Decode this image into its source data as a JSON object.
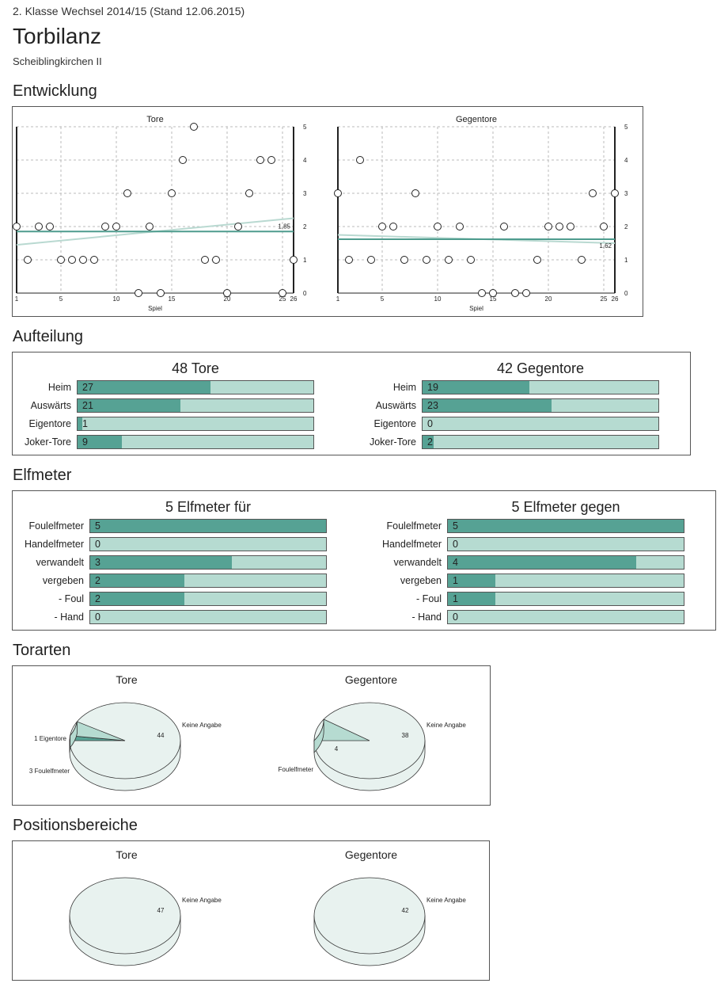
{
  "header": {
    "subtitle": "2. Klasse Wechsel 2014/15 (Stand 12.06.2015)",
    "title": "Torbilanz",
    "team": "Scheiblingkirchen II"
  },
  "sections": {
    "entwicklung": "Entwicklung",
    "aufteilung": "Aufteilung",
    "elfmeter": "Elfmeter",
    "torarten": "Torarten",
    "positionsbereiche": "Positionsbereiche"
  },
  "colors": {
    "dark_bar": "#56a294",
    "light_bar": "#b6dbd1",
    "mean_line": "#4e9c8e",
    "trend_line": "#b9d9d1",
    "pie_light": "#e8f2ef",
    "pie_dark": "#56a294",
    "pie_mid": "#b6dbd1"
  },
  "chart_data": [
    {
      "type": "scatter",
      "title": "Tore",
      "xlabel": "Spiel",
      "x_ticks": [
        1,
        5,
        10,
        15,
        20,
        25,
        26
      ],
      "y_ticks": [
        0,
        1,
        2,
        3,
        4,
        5
      ],
      "ylim": [
        0,
        5
      ],
      "xlim": [
        1,
        26
      ],
      "grid": true,
      "x": [
        1,
        2,
        3,
        4,
        5,
        6,
        7,
        8,
        9,
        10,
        11,
        12,
        13,
        14,
        15,
        16,
        17,
        18,
        19,
        20,
        21,
        22,
        23,
        24,
        25,
        26
      ],
      "y": [
        2,
        1,
        2,
        2,
        1,
        1,
        1,
        1,
        2,
        2,
        3,
        0,
        2,
        0,
        3,
        4,
        5,
        1,
        1,
        0,
        2,
        3,
        4,
        4,
        0,
        1
      ],
      "mean": 1.85,
      "mean_label": "1,85",
      "trend": [
        1.45,
        2.25
      ]
    },
    {
      "type": "scatter",
      "title": "Gegentore",
      "xlabel": "Spiel",
      "x_ticks": [
        1,
        5,
        10,
        15,
        20,
        25,
        26
      ],
      "y_ticks": [
        0,
        1,
        2,
        3,
        4,
        5
      ],
      "ylim": [
        0,
        5
      ],
      "xlim": [
        1,
        26
      ],
      "grid": true,
      "x": [
        1,
        2,
        3,
        4,
        5,
        6,
        7,
        8,
        9,
        10,
        11,
        12,
        13,
        14,
        15,
        16,
        17,
        18,
        19,
        20,
        21,
        22,
        23,
        24,
        25,
        26
      ],
      "y": [
        3,
        1,
        4,
        1,
        2,
        2,
        1,
        3,
        1,
        2,
        1,
        2,
        1,
        0,
        0,
        2,
        0,
        0,
        1,
        2,
        2,
        2,
        1,
        3,
        2,
        3
      ],
      "mean": 1.62,
      "mean_label": "1,62",
      "trend": [
        1.75,
        1.5
      ]
    },
    {
      "type": "bar",
      "title": "48 Tore",
      "max": 48,
      "categories": [
        "Heim",
        "Auswärts",
        "Eigentore",
        "Joker-Tore"
      ],
      "values": [
        27,
        21,
        1,
        9
      ]
    },
    {
      "type": "bar",
      "title": "42 Gegentore",
      "max": 42,
      "categories": [
        "Heim",
        "Auswärts",
        "Eigentore",
        "Joker-Tore"
      ],
      "values": [
        19,
        23,
        0,
        2
      ]
    },
    {
      "type": "bar",
      "title": "5 Elfmeter für",
      "max": 5,
      "categories": [
        "Foulelfmeter",
        "Handelfmeter",
        "verwandelt",
        "vergeben",
        "- Foul",
        "- Hand"
      ],
      "values": [
        5,
        0,
        3,
        2,
        2,
        0
      ]
    },
    {
      "type": "bar",
      "title": "5 Elfmeter gegen",
      "max": 5,
      "categories": [
        "Foulelfmeter",
        "Handelfmeter",
        "verwandelt",
        "vergeben",
        "- Foul",
        "- Hand"
      ],
      "values": [
        5,
        0,
        4,
        1,
        1,
        0
      ]
    },
    {
      "type": "pie",
      "title": "Tore",
      "labels": [
        "Keine Angabe",
        "1 Eigentore",
        "3 Foulelfmeter"
      ],
      "values": [
        44,
        1,
        3
      ],
      "value_labels": [
        "44",
        "",
        ""
      ]
    },
    {
      "type": "pie",
      "title": "Gegentore",
      "labels": [
        "Keine Angabe",
        "Foulelfmeter"
      ],
      "values": [
        38,
        4
      ],
      "value_labels": [
        "38",
        "4"
      ]
    },
    {
      "type": "pie",
      "title": "Tore",
      "labels": [
        "Keine Angabe"
      ],
      "values": [
        47
      ],
      "value_labels": [
        "47"
      ]
    },
    {
      "type": "pie",
      "title": "Gegentore",
      "labels": [
        "Keine Angabe"
      ],
      "values": [
        42
      ],
      "value_labels": [
        "42"
      ]
    }
  ]
}
